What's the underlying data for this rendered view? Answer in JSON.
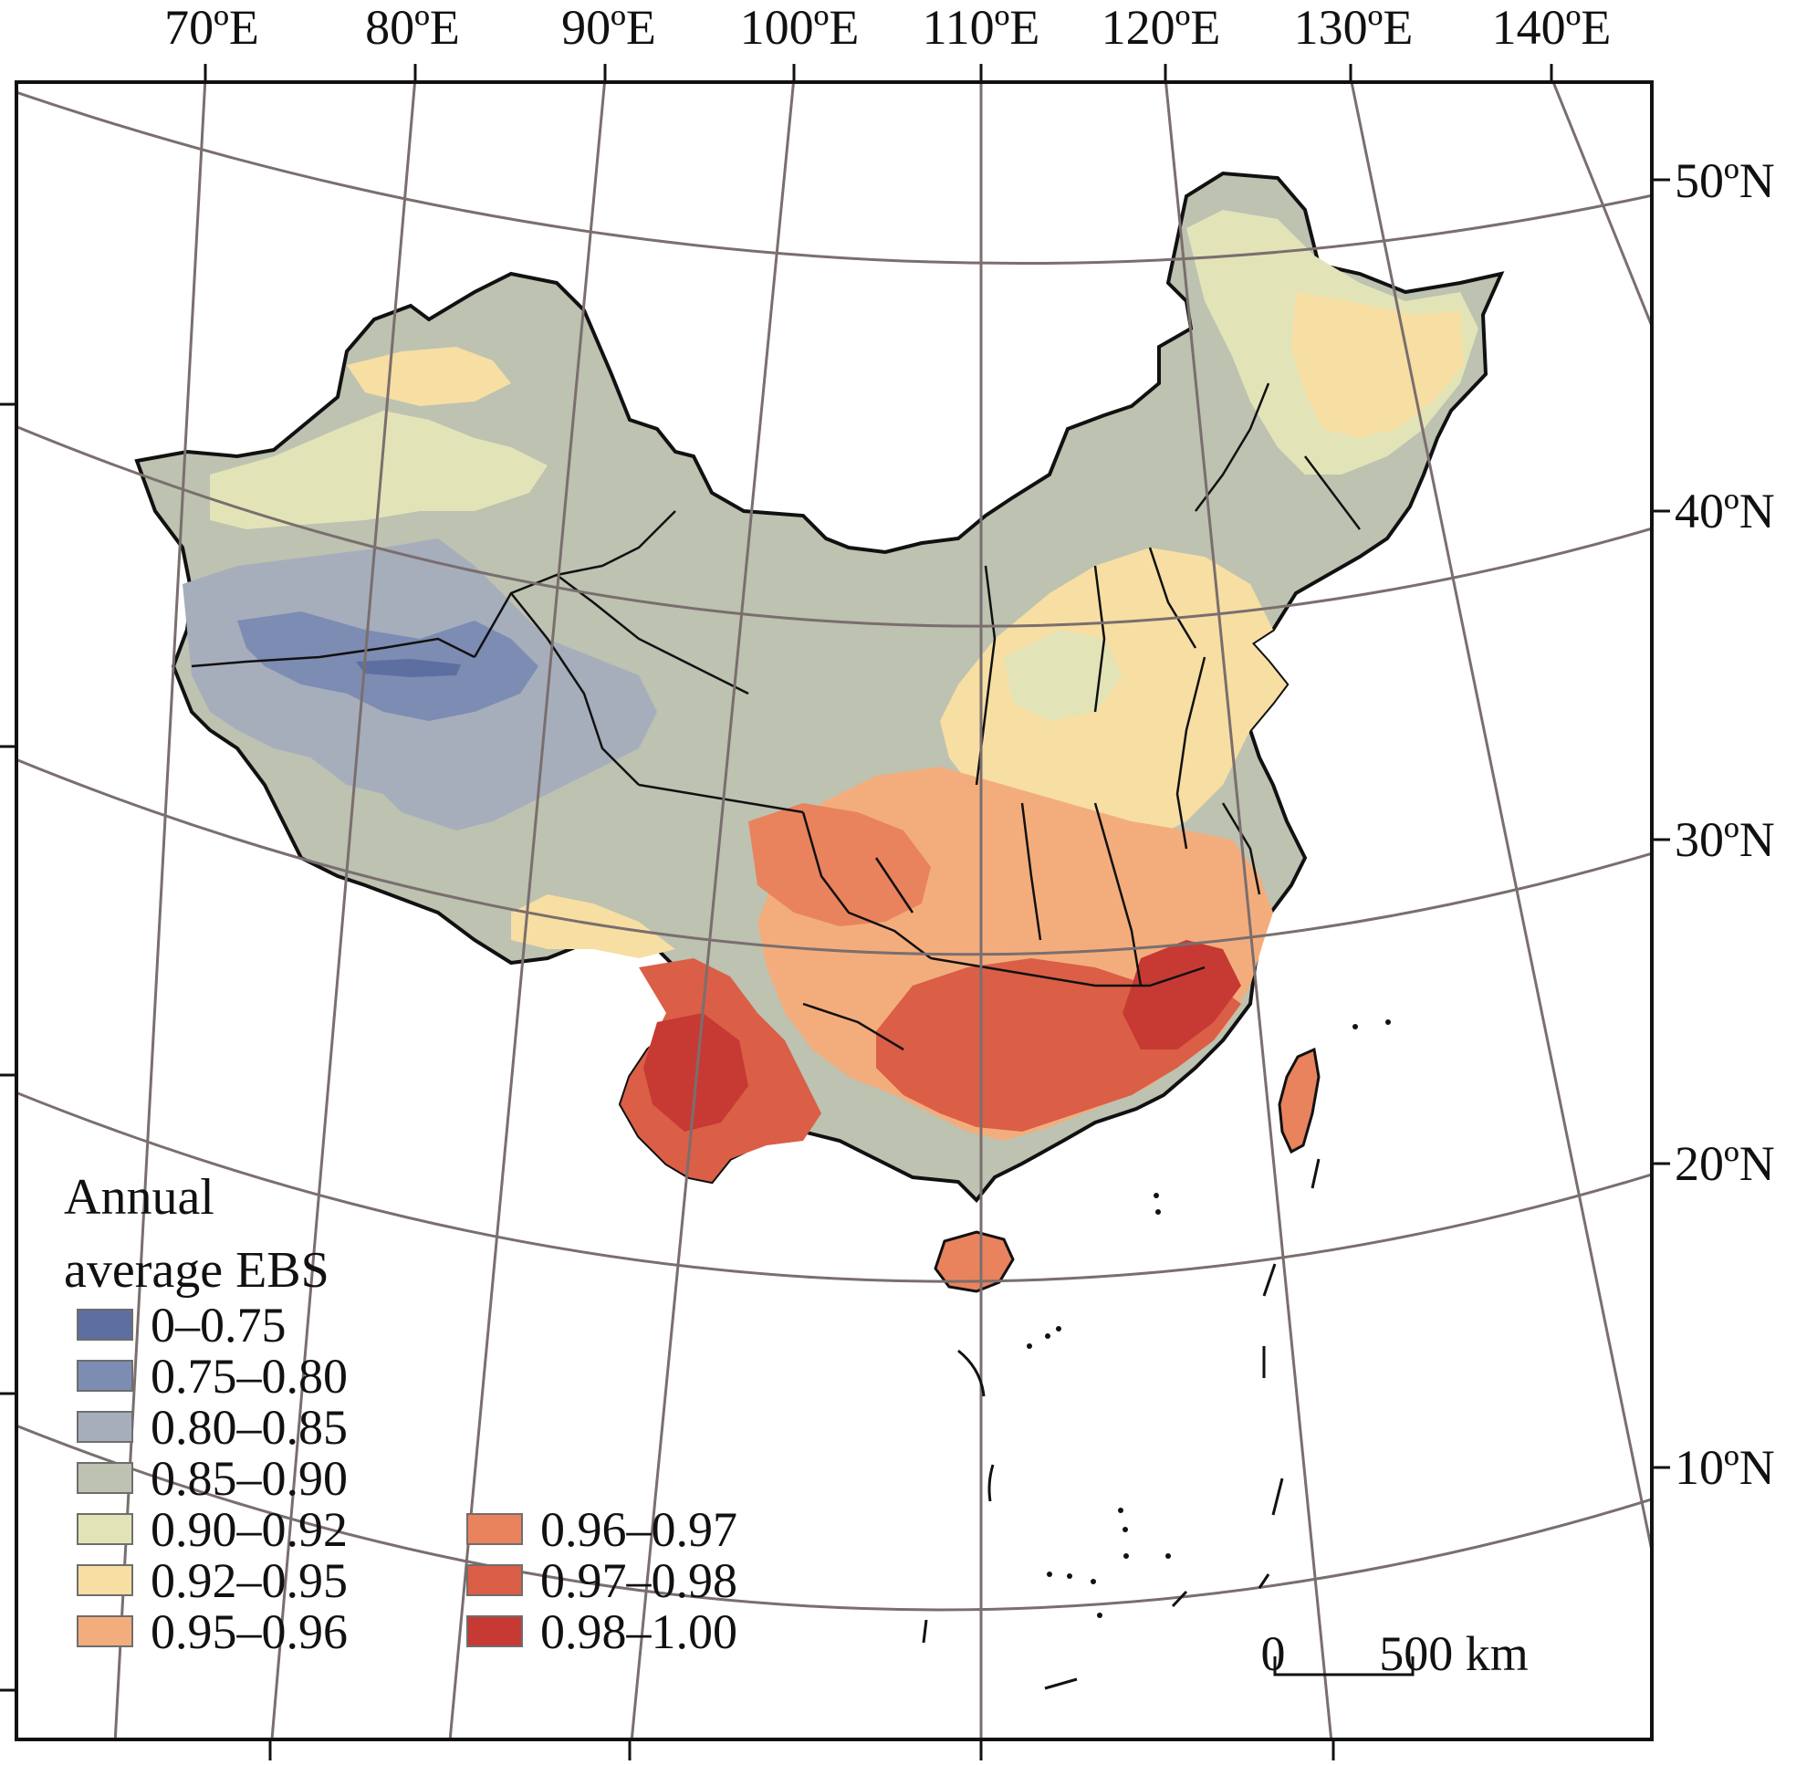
{
  "map": {
    "top_axis_labels": [
      "70ºE",
      "80ºE",
      "90ºE",
      "100ºE",
      "110ºE",
      "120ºE",
      "130ºE",
      "140ºE"
    ],
    "right_axis_labels": [
      "50ºN",
      "40ºN",
      "30ºN",
      "20ºN",
      "10ºN"
    ]
  },
  "legend": {
    "title_line1": "Annual",
    "title_line2": "average EBS",
    "classes": [
      {
        "label": "0–0.75",
        "color": "#5c6fa0"
      },
      {
        "label": "0.75–0.80",
        "color": "#7d8cb3"
      },
      {
        "label": "0.80–0.85",
        "color": "#a6aebc"
      },
      {
        "label": "0.85–0.90",
        "color": "#bdc2b1"
      },
      {
        "label": "0.90–0.92",
        "color": "#e2e4b8"
      },
      {
        "label": "0.92–0.95",
        "color": "#f7dea3"
      },
      {
        "label": "0.95–0.96",
        "color": "#f3ad7c"
      },
      {
        "label": "0.96–0.97",
        "color": "#e9835e"
      },
      {
        "label": "0.97–0.98",
        "color": "#db5e47"
      },
      {
        "label": "0.98–1.00",
        "color": "#c63a33"
      }
    ]
  },
  "scale_bar": {
    "start_label": "0",
    "end_label": "500 km"
  },
  "colors": {
    "graticule": "#7a6e6e",
    "boundary": "#111111",
    "frame": "#111111"
  }
}
